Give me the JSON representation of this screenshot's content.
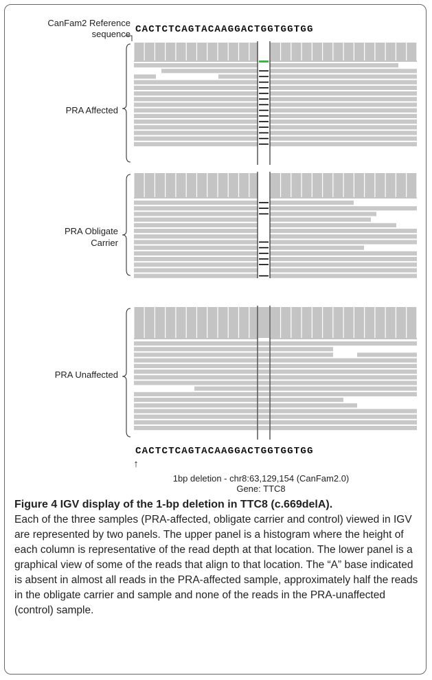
{
  "labels": {
    "reference_title": "CanFam2 Reference",
    "reference_sub": "sequence",
    "reference_sequence": "CACTCTCAGTACAAGGACTGGTGGTGG",
    "bottom_sequence": "CACTCTCAGTACAAGGACTGGTGGTGG",
    "arrow": "↑",
    "deletion_note": "1bp deletion - chr8:63,129,154 (CanFam2.0)",
    "gene_note": "Gene: TTC8"
  },
  "samples": [
    {
      "name": "PRA Affected"
    },
    {
      "name_line1": "PRA Obligate",
      "name_line2": "Carrier"
    },
    {
      "name": "PRA Unaffected"
    }
  ],
  "caption": {
    "title": "Figure 4 IGV display of the 1-bp deletion in TTC8 (c.669delA).",
    "body": "Each of the three samples (PRA-affected, obligate carrier and control) viewed in IGV are represented by two panels. The upper panel is a histogram where the height of each column is representative of the read depth at that location. The lower panel is a graphical view of some of the reads that align to that location. The “A” base indicated is absent in almost all reads in the PRA-affected sample, approximately half the reads in the obligate carrier and sample and none of the reads in the PRA-unaffected (control) sample."
  },
  "colors": {
    "read": "#c8c8c8",
    "coverage": "#c4c4c4",
    "deletion_mark": "#000000",
    "insertion_mark": "#3cb54a"
  }
}
